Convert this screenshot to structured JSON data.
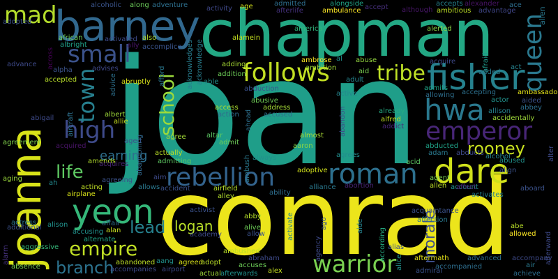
{
  "word_cloud": {
    "background": "#000000",
    "words": [
      {
        "text": "joan",
        "color": "#1f9e89"
      },
      {
        "text": "conrad",
        "color": "#ece51b"
      },
      {
        "text": "chapman",
        "color": "#23a884"
      },
      {
        "text": "joanna",
        "color": "#d8e219"
      },
      {
        "text": "barney",
        "color": "#31688e"
      },
      {
        "text": "fisher",
        "color": "#26828e"
      },
      {
        "text": "hwa",
        "color": "#2a788e"
      },
      {
        "text": "emperor",
        "color": "#482677"
      },
      {
        "text": "rebellion",
        "color": "#33638d"
      },
      {
        "text": "roman",
        "color": "#2d708e"
      },
      {
        "text": "dare",
        "color": "#d0e11c"
      },
      {
        "text": "yeon",
        "color": "#35b779"
      },
      {
        "text": "warrior",
        "color": "#7ad151"
      },
      {
        "text": "follows",
        "color": "#c2df23"
      },
      {
        "text": "tribe",
        "color": "#bddf26"
      },
      {
        "text": "queen",
        "color": "#2a788e"
      },
      {
        "text": "mad",
        "color": "#b5de2b"
      },
      {
        "text": "small",
        "color": "#3b528b"
      },
      {
        "text": "high",
        "color": "#3e4a89"
      },
      {
        "text": "town",
        "color": "#277f8e"
      },
      {
        "text": "school",
        "color": "#9bd93c"
      },
      {
        "text": "life",
        "color": "#5ec962"
      },
      {
        "text": "rooney",
        "color": "#c8e020"
      },
      {
        "text": "empire",
        "color": "#c0df25"
      },
      {
        "text": "branch",
        "color": "#2c728e"
      },
      {
        "text": "lead",
        "color": "#26818e"
      },
      {
        "text": "logan",
        "color": "#b8de29"
      },
      {
        "text": "morale",
        "color": "#3d4e8a"
      },
      {
        "text": "earning",
        "color": "#2e6f8e"
      },
      {
        "text": "alcoholic",
        "color": "#3a548c"
      },
      {
        "text": "along",
        "color": "#6ccd5a"
      },
      {
        "text": "adventure",
        "color": "#2d708e"
      },
      {
        "text": "activity",
        "color": "#3f4889"
      },
      {
        "text": "age",
        "color": "#d5e21a"
      },
      {
        "text": "admitted",
        "color": "#2e6e8e"
      },
      {
        "text": "afterlife",
        "color": "#46327e"
      },
      {
        "text": "alongside",
        "color": "#20a386"
      },
      {
        "text": "ambulance",
        "color": "#fde725"
      },
      {
        "text": "accept",
        "color": "#472f7d"
      },
      {
        "text": "although",
        "color": "#481769"
      },
      {
        "text": "accepts",
        "color": "#26828e"
      },
      {
        "text": "ambitious",
        "color": "#bddf26"
      },
      {
        "text": "alexander",
        "color": "#471365"
      },
      {
        "text": "advantage",
        "color": "#404688"
      },
      {
        "text": "ace",
        "color": "#2e6e8e"
      },
      {
        "text": "alien",
        "color": "#2a788e"
      },
      {
        "text": "adopted",
        "color": "#3b528b"
      },
      {
        "text": "african",
        "color": "#6ece58"
      },
      {
        "text": "albright",
        "color": "#1fa088"
      },
      {
        "text": "activated",
        "color": "#3e4a89"
      },
      {
        "text": "ally",
        "color": "#471365"
      },
      {
        "text": "also",
        "color": "#b2dd2d"
      },
      {
        "text": "accomplice",
        "color": "#3a548c"
      },
      {
        "text": "acknowledge",
        "color": "#287d8e"
      },
      {
        "text": "alamein",
        "color": "#c5e021"
      },
      {
        "text": "america",
        "color": "#31b57b"
      },
      {
        "text": "alerted",
        "color": "#8bd646"
      },
      {
        "text": "acquire",
        "color": "#3e4a89"
      },
      {
        "text": "afraid",
        "color": "#1f9a8a"
      },
      {
        "text": "across",
        "color": "#440154"
      },
      {
        "text": "advance",
        "color": "#3e4a89"
      },
      {
        "text": "alpha",
        "color": "#3b528b"
      },
      {
        "text": "advises",
        "color": "#3f4788"
      },
      {
        "text": "advice",
        "color": "#2d708e"
      },
      {
        "text": "afford",
        "color": "#2a788e"
      },
      {
        "text": "acknowledges",
        "color": "#287c8e"
      },
      {
        "text": "adding",
        "color": "#a8db34"
      },
      {
        "text": "ambrose",
        "color": "#fde725"
      },
      {
        "text": "abuse",
        "color": "#95d840"
      },
      {
        "text": "act",
        "color": "#26828e"
      },
      {
        "text": "accepted",
        "color": "#b8de29"
      },
      {
        "text": "abruptly",
        "color": "#d8e219"
      },
      {
        "text": "addition",
        "color": "#6ece58"
      },
      {
        "text": "able",
        "color": "#21918c"
      },
      {
        "text": "ambition",
        "color": "#a0da39"
      },
      {
        "text": "aid",
        "color": "#7ad151"
      },
      {
        "text": "added",
        "color": "#2a788e"
      },
      {
        "text": "admits",
        "color": "#20a386"
      },
      {
        "text": "adult",
        "color": "#25848e"
      },
      {
        "text": "abduction",
        "color": "#3b528b"
      },
      {
        "text": "active",
        "color": "#25858e"
      },
      {
        "text": "accepting",
        "color": "#2d708e"
      },
      {
        "text": "ambassador",
        "color": "#e5e419"
      },
      {
        "text": "aircraft",
        "color": "#2d708e"
      },
      {
        "text": "allowing",
        "color": "#2e6e8e"
      },
      {
        "text": "actor",
        "color": "#21918c"
      },
      {
        "text": "aided",
        "color": "#3b528b"
      },
      {
        "text": "abusive",
        "color": "#70cf57"
      },
      {
        "text": "allison",
        "color": "#26828e"
      },
      {
        "text": "abbey",
        "color": "#2e6f8e"
      },
      {
        "text": "abigail",
        "color": "#3e4a89"
      },
      {
        "text": "albert",
        "color": "#a0da39"
      },
      {
        "text": "access",
        "color": "#addc30"
      },
      {
        "text": "address",
        "color": "#a5db36"
      },
      {
        "text": "already",
        "color": "#25ab82"
      },
      {
        "text": "accidentally",
        "color": "#9fda3a"
      },
      {
        "text": "action",
        "color": "#2f6c8e"
      },
      {
        "text": "accused",
        "color": "#2e6e8e"
      },
      {
        "text": "ahead",
        "color": "#2d708e"
      },
      {
        "text": "alec",
        "color": "#1f9a8a"
      },
      {
        "text": "abandon",
        "color": "#3e4a89"
      },
      {
        "text": "alfred",
        "color": "#c2df23"
      },
      {
        "text": "addict",
        "color": "#482677"
      },
      {
        "text": "allie",
        "color": "#c8e020"
      },
      {
        "text": "aged",
        "color": "#3b528b"
      },
      {
        "text": "agreement",
        "color": "#81d34d"
      },
      {
        "text": "admit",
        "color": "#6ece58"
      },
      {
        "text": "almost",
        "color": "#a8db34"
      },
      {
        "text": "abducted",
        "color": "#1fa187"
      },
      {
        "text": "abandoning",
        "color": "#31688e"
      },
      {
        "text": "agree",
        "color": "#a2da37"
      },
      {
        "text": "altar",
        "color": "#5cc863"
      },
      {
        "text": "aaron",
        "color": "#8bd646"
      },
      {
        "text": "alter",
        "color": "#3e4a89"
      },
      {
        "text": "acquired",
        "color": "#481467"
      },
      {
        "text": "amends",
        "color": "#b2dd2d"
      },
      {
        "text": "actually",
        "color": "#bade28"
      },
      {
        "text": "adam",
        "color": "#2a788e"
      },
      {
        "text": "abducts",
        "color": "#3e4a89"
      },
      {
        "text": "alcohol",
        "color": "#26828e"
      },
      {
        "text": "admitting",
        "color": "#5ec962"
      },
      {
        "text": "always",
        "color": "#21918c"
      },
      {
        "text": "acid",
        "color": "#5ec962"
      },
      {
        "text": "agrees",
        "color": "#228c8d"
      },
      {
        "text": "ambush",
        "color": "#2a788e"
      },
      {
        "text": "acquires",
        "color": "#482475"
      },
      {
        "text": "adoptive",
        "color": "#d2e21b"
      },
      {
        "text": "abused",
        "color": "#21918c"
      },
      {
        "text": "align",
        "color": "#3b528b"
      },
      {
        "text": "aging",
        "color": "#9bd93c"
      },
      {
        "text": "ah",
        "color": "#23898e"
      },
      {
        "text": "agreeing",
        "color": "#3b528b"
      },
      {
        "text": "aim",
        "color": "#3e4a89"
      },
      {
        "text": "agent",
        "color": "#7ad151"
      },
      {
        "text": "alliance",
        "color": "#2a788e"
      },
      {
        "text": "abortion",
        "color": "#482475"
      },
      {
        "text": "allen",
        "color": "#bddf26"
      },
      {
        "text": "account",
        "color": "#21918c"
      },
      {
        "text": "affect",
        "color": "#482475"
      },
      {
        "text": "acting",
        "color": "#c0df25"
      },
      {
        "text": "allows",
        "color": "#2a788e"
      },
      {
        "text": "accident",
        "color": "#3b528b"
      },
      {
        "text": "airplane",
        "color": "#d8e219"
      },
      {
        "text": "airfield",
        "color": "#b5de2b"
      },
      {
        "text": "alley",
        "color": "#b2dd2d"
      },
      {
        "text": "ability",
        "color": "#2e6e8e"
      },
      {
        "text": "activates",
        "color": "#26828e"
      },
      {
        "text": "aboard",
        "color": "#3b528b"
      },
      {
        "text": "activist",
        "color": "#3b528b"
      },
      {
        "text": "abby",
        "color": "#b5de2b"
      },
      {
        "text": "acquaintance",
        "color": "#3b528b"
      },
      {
        "text": "affection",
        "color": "#2a788e"
      },
      {
        "text": "affair",
        "color": "#2e6e8e"
      },
      {
        "text": "actress",
        "color": "#2a788e"
      },
      {
        "text": "alison",
        "color": "#21918c"
      },
      {
        "text": "additional",
        "color": "#3b528b"
      },
      {
        "text": "accusing",
        "color": "#21918c"
      },
      {
        "text": "alan",
        "color": "#c8e020"
      },
      {
        "text": "alternate",
        "color": "#20a386"
      },
      {
        "text": "afterward",
        "color": "#3e4a89"
      },
      {
        "text": "abe",
        "color": "#b8de29"
      },
      {
        "text": "allowed",
        "color": "#fde725"
      },
      {
        "text": "achieve",
        "color": "#2e6e8e"
      },
      {
        "text": "alive",
        "color": "#6ece58"
      },
      {
        "text": "allow",
        "color": "#3b528b"
      },
      {
        "text": "academy",
        "color": "#3e4a89"
      },
      {
        "text": "activate",
        "color": "#26828e"
      },
      {
        "text": "ago",
        "color": "#3b528b"
      },
      {
        "text": "aide",
        "color": "#26828e"
      },
      {
        "text": "according",
        "color": "#25ab82"
      },
      {
        "text": "agency",
        "color": "#3e4a89"
      },
      {
        "text": "alias",
        "color": "#3b528b"
      },
      {
        "text": "alice",
        "color": "#21918c"
      },
      {
        "text": "aggressive",
        "color": "#35b779"
      },
      {
        "text": "alarm",
        "color": "#46327e"
      },
      {
        "text": "ambushed",
        "color": "#bade28"
      },
      {
        "text": "abraham",
        "color": "#3e4a89"
      },
      {
        "text": "accuses",
        "color": "#6ece58"
      },
      {
        "text": "aftermath",
        "color": "#e5e419"
      },
      {
        "text": "accompanied",
        "color": "#2e6e8e"
      },
      {
        "text": "advanced",
        "color": "#2e6e8e"
      },
      {
        "text": "accompany",
        "color": "#3e4a89"
      },
      {
        "text": "air",
        "color": "#2a788e"
      },
      {
        "text": "absence",
        "color": "#7ad151"
      },
      {
        "text": "abandoned",
        "color": "#bddf26"
      },
      {
        "text": "accompanies",
        "color": "#3e4a89"
      },
      {
        "text": "aang",
        "color": "#21918c"
      },
      {
        "text": "agreed",
        "color": "#d8e219"
      },
      {
        "text": "adopt",
        "color": "#bade28"
      },
      {
        "text": "airport",
        "color": "#3e4a89"
      },
      {
        "text": "actual",
        "color": "#a0da39"
      },
      {
        "text": "afterwards",
        "color": "#21918c"
      },
      {
        "text": "alex",
        "color": "#c5e021"
      },
      {
        "text": "admiral",
        "color": "#3b528b"
      },
      {
        "text": "al",
        "color": "#21918c"
      }
    ]
  }
}
